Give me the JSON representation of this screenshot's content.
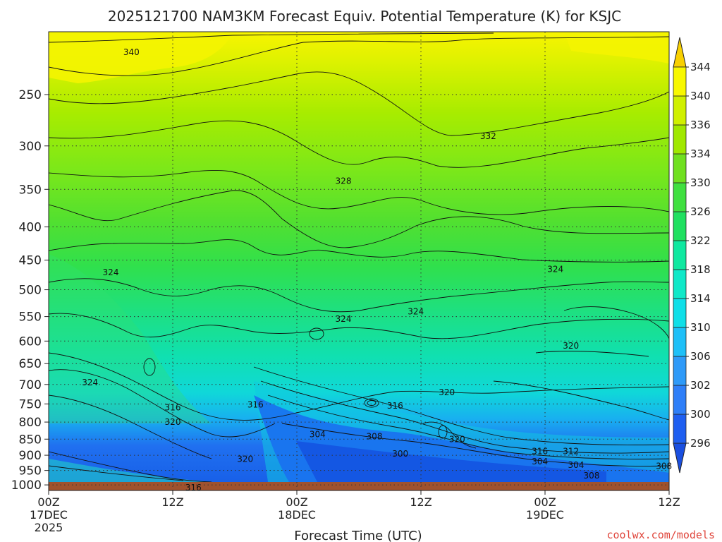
{
  "chart_data": {
    "type": "heatmap",
    "title": "2025121700 NAM3KM Forecast Equiv. Potential Temperature (K) for KSJC",
    "xlabel": "Forecast Time (UTC)",
    "ylabel": "",
    "y_ticks": [
      250,
      300,
      350,
      400,
      450,
      500,
      550,
      600,
      650,
      700,
      750,
      800,
      850,
      900,
      950,
      1000
    ],
    "y_axis_range": [
      1020,
      200
    ],
    "x_ticks": [
      {
        "hour": 0,
        "line1": "00Z",
        "line2": "17DEC",
        "line3": "2025"
      },
      {
        "hour": 12,
        "line1": "12Z",
        "line2": "",
        "line3": ""
      },
      {
        "hour": 24,
        "line1": "00Z",
        "line2": "18DEC",
        "line3": ""
      },
      {
        "hour": 36,
        "line1": "12Z",
        "line2": "",
        "line3": ""
      },
      {
        "hour": 48,
        "line1": "00Z",
        "line2": "19DEC",
        "line3": ""
      },
      {
        "hour": 60,
        "line1": "12Z",
        "line2": "",
        "line3": ""
      }
    ],
    "x_axis_range": [
      0,
      60
    ],
    "grid": true,
    "colorbar": {
      "levels": [
        296,
        300,
        302,
        306,
        310,
        314,
        318,
        322,
        326,
        330,
        334,
        336,
        340,
        344
      ],
      "colors": [
        "#1f5ff0",
        "#2f7ff8",
        "#2f9af8",
        "#1fc0f8",
        "#10dfe8",
        "#10e8c8",
        "#10e8a0",
        "#20e060",
        "#40e040",
        "#70e020",
        "#a0e800",
        "#d0f000",
        "#f8f800"
      ]
    },
    "contour_labels": [
      {
        "text": "340",
        "hour": 8,
        "p": 215
      },
      {
        "text": "332",
        "hour": 42.5,
        "p": 290
      },
      {
        "text": "328",
        "hour": 28.5,
        "p": 340
      },
      {
        "text": "324",
        "hour": 6,
        "p": 470
      },
      {
        "text": "324",
        "hour": 49,
        "p": 465
      },
      {
        "text": "324",
        "hour": 28.5,
        "p": 555
      },
      {
        "text": "324",
        "hour": 35.5,
        "p": 540
      },
      {
        "text": "324",
        "hour": 4,
        "p": 695
      },
      {
        "text": "320",
        "hour": 50.5,
        "p": 610
      },
      {
        "text": "316",
        "hour": 12,
        "p": 760
      },
      {
        "text": "316",
        "hour": 20,
        "p": 752
      },
      {
        "text": "316",
        "hour": 33.5,
        "p": 755
      },
      {
        "text": "320",
        "hour": 12,
        "p": 800
      },
      {
        "text": "320",
        "hour": 38.5,
        "p": 720
      },
      {
        "text": "320",
        "hour": 39.5,
        "p": 850
      },
      {
        "text": "304",
        "hour": 26,
        "p": 836
      },
      {
        "text": "308",
        "hour": 31.5,
        "p": 842
      },
      {
        "text": "300",
        "hour": 34,
        "p": 895
      },
      {
        "text": "316",
        "hour": 47.5,
        "p": 888
      },
      {
        "text": "312",
        "hour": 50.5,
        "p": 888
      },
      {
        "text": "304",
        "hour": 47.5,
        "p": 920
      },
      {
        "text": "304",
        "hour": 51,
        "p": 932
      },
      {
        "text": "308",
        "hour": 52.5,
        "p": 968
      },
      {
        "text": "308",
        "hour": 59.5,
        "p": 935
      },
      {
        "text": "320",
        "hour": 19,
        "p": 912
      },
      {
        "text": "316",
        "hour": 14,
        "p": 1010
      }
    ]
  },
  "credit": "coolwx.com/models"
}
